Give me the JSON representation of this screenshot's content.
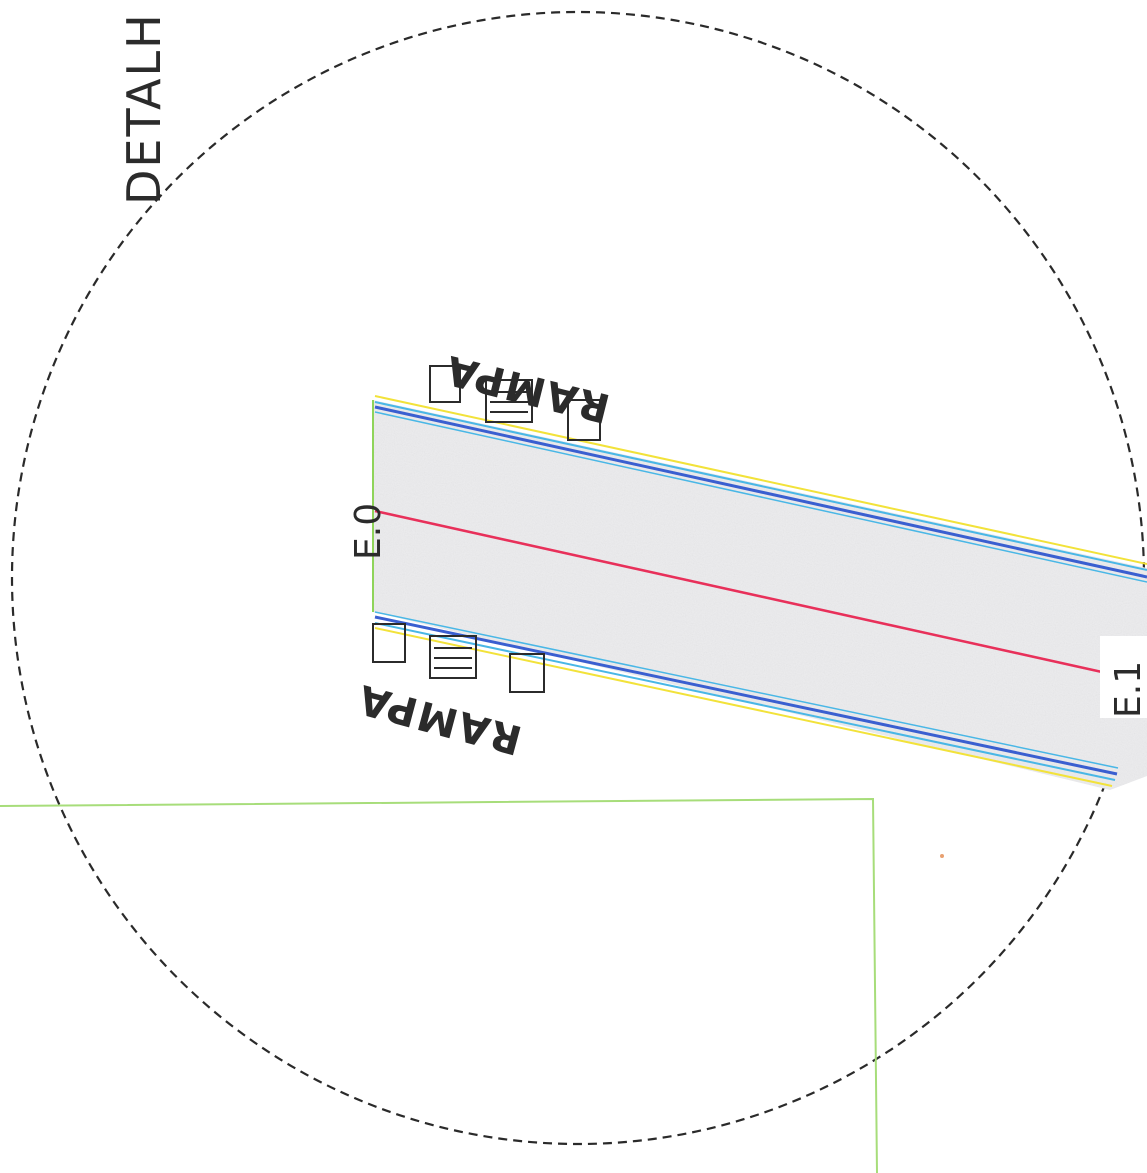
{
  "drawing": {
    "detail_title": "DETALH",
    "station_start": "E.0",
    "station_end": "E.1",
    "ramp_label_top": "RAMPA",
    "ramp_label_bottom": "RAMPA"
  },
  "colors": {
    "detail_circle": "#2a2a2a",
    "road_fill": "#ececee",
    "centerline": "#e8305a",
    "edge_blue": "#3a5fd0",
    "edge_cyan": "#49b7e6",
    "edge_yellow": "#f2e23a",
    "boundary_green": "#a7dd7a",
    "text": "#2b2b2b"
  }
}
